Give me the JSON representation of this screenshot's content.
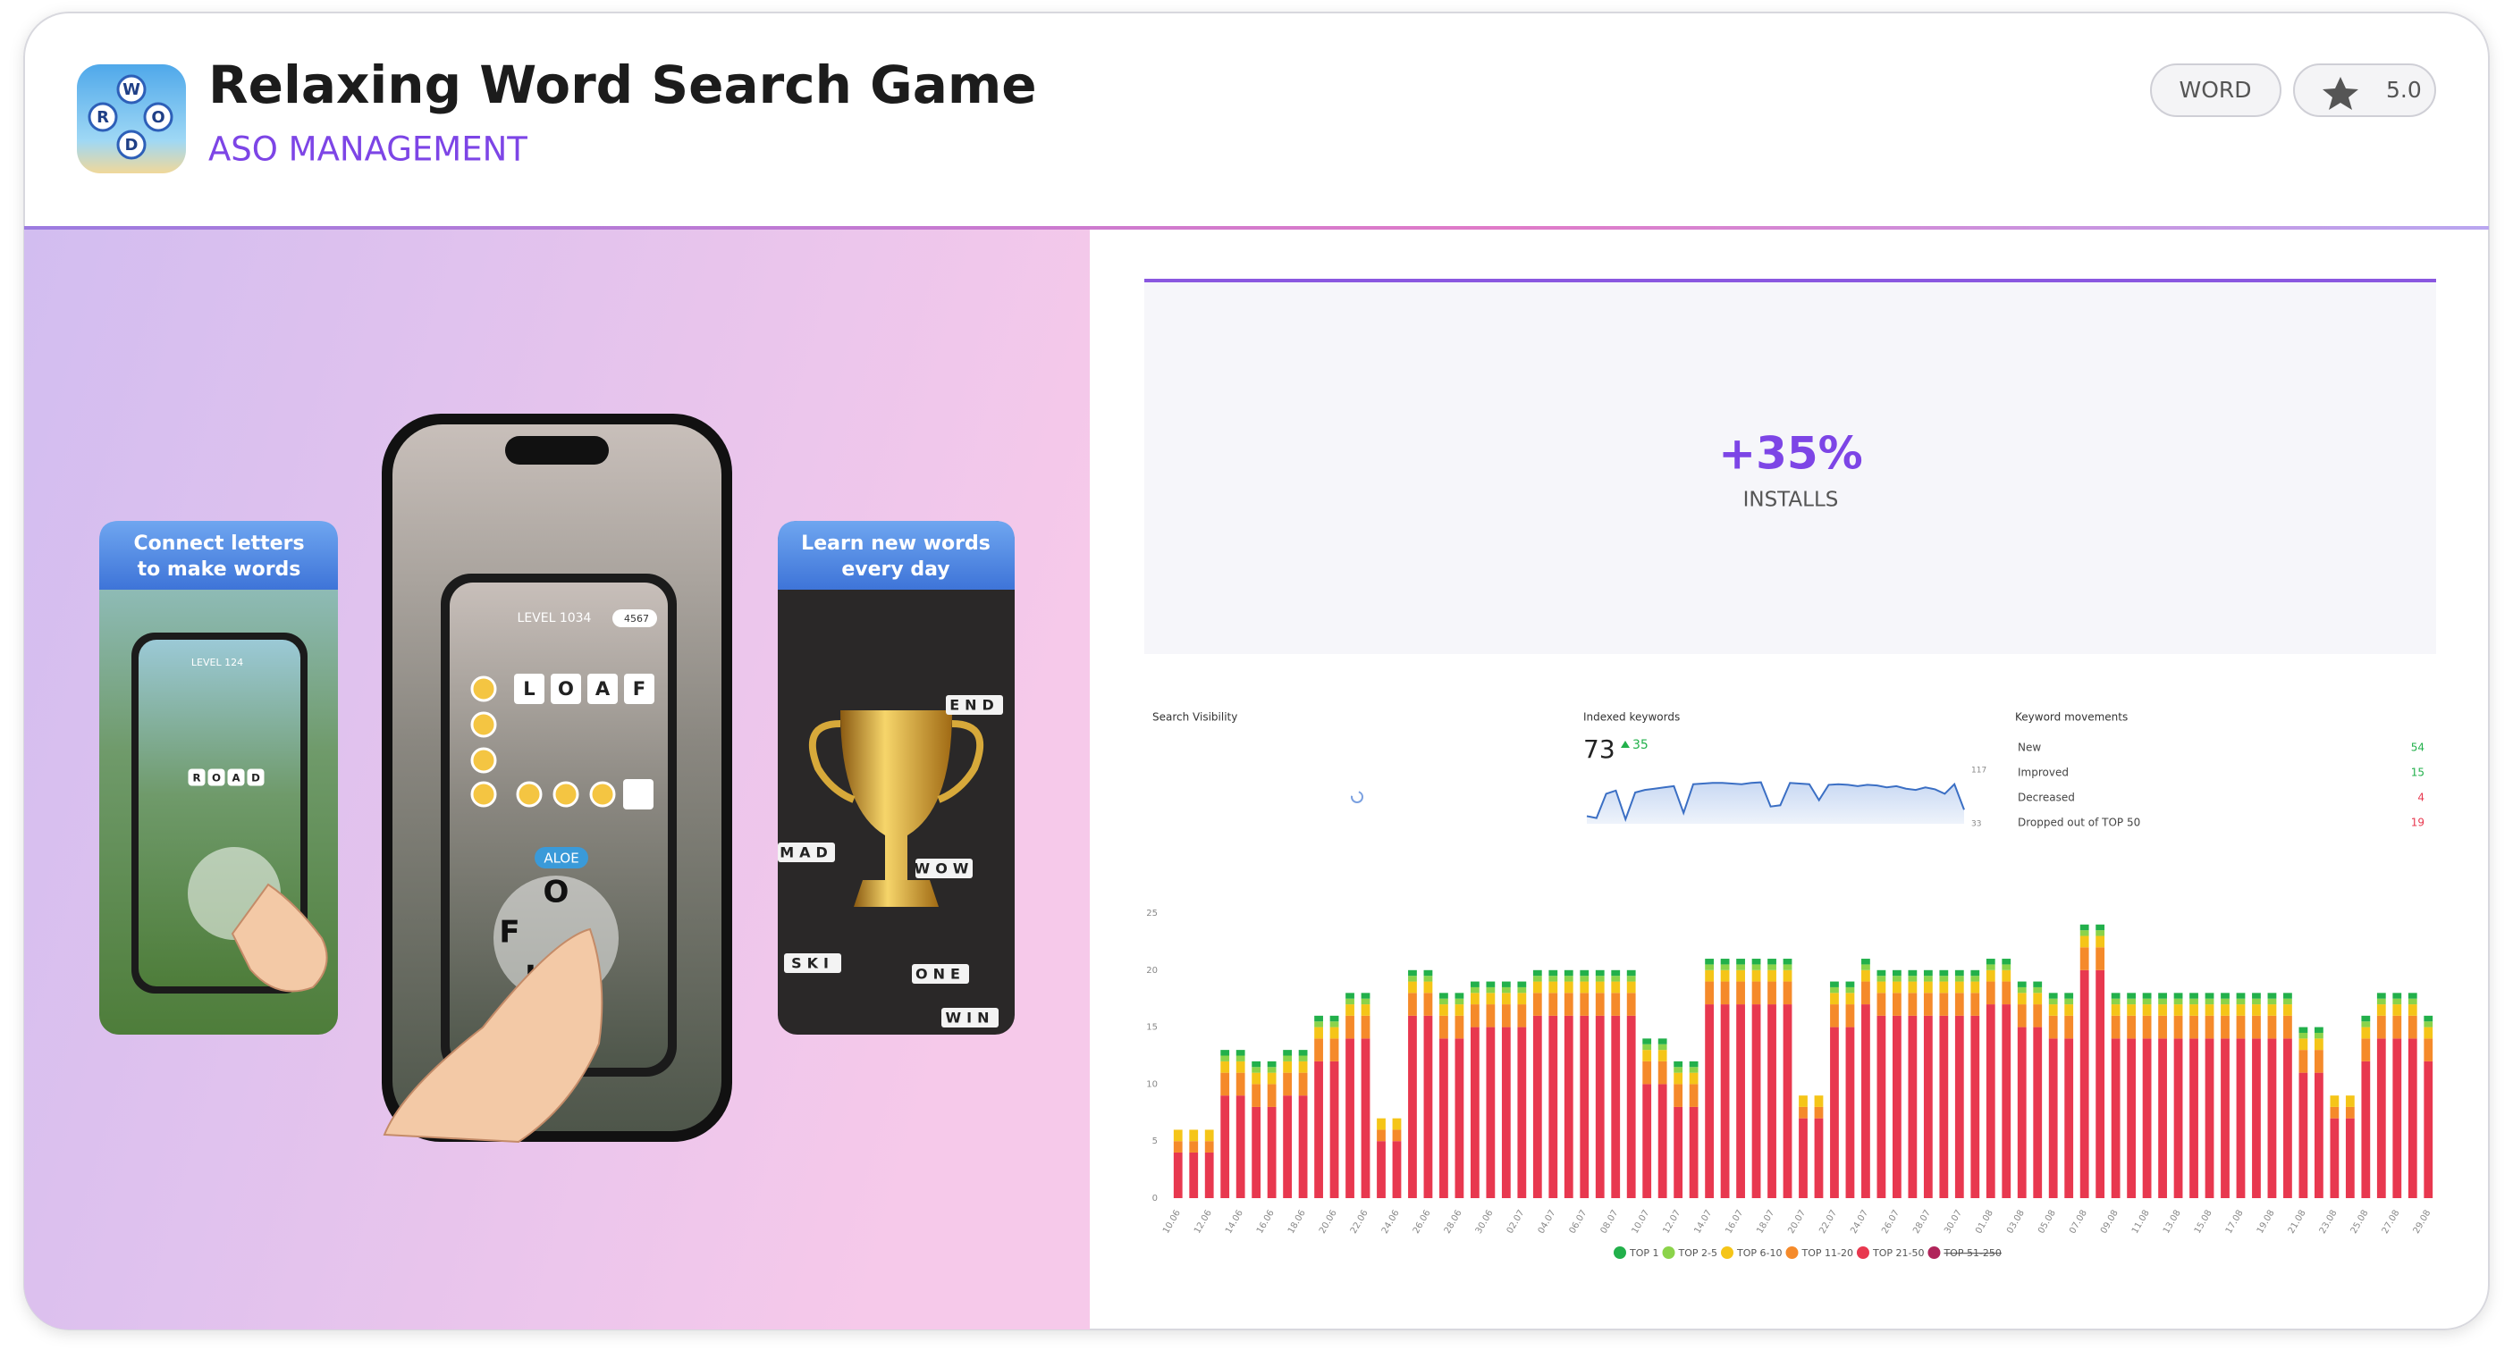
{
  "header": {
    "title": "Relaxing Word Search Game",
    "subtitle": "ASO MANAGEMENT",
    "icon_letters": [
      "W",
      "O",
      "R",
      "D"
    ],
    "tag": "WORD",
    "rating": "5.0"
  },
  "screens": [
    {
      "caption": [
        "Connect letters",
        "to make words"
      ],
      "level": "LEVEL 124",
      "tiles": [
        "R",
        "O",
        "A",
        "D"
      ]
    },
    {
      "level": "LEVEL 1034",
      "coins": "4567",
      "tiles": [
        "L",
        "O",
        "A",
        "F"
      ],
      "word": "ALOE",
      "wheel": [
        "O",
        "F",
        "L"
      ]
    },
    {
      "caption": [
        "Learn new words",
        "every day"
      ],
      "words": [
        "END",
        "MAD",
        "WOW",
        "SKI",
        "ONE",
        "WIN"
      ]
    }
  ],
  "result": {
    "value": "+35%",
    "label": "INSTALLS"
  },
  "metrics": {
    "search_visibility": "Search Visibility",
    "indexed": {
      "label": "Indexed keywords",
      "value": 73,
      "change": 35
    },
    "movements": {
      "label": "Keyword movements",
      "rows": [
        {
          "name": "New",
          "value": 54,
          "color": "#22b04b"
        },
        {
          "name": "Improved",
          "value": 15,
          "color": "#22b04b"
        },
        {
          "name": "Decreased",
          "value": 4,
          "color": "#e8384f"
        },
        {
          "name": "Dropped out of TOP 50",
          "value": 19,
          "color": "#e8384f"
        }
      ]
    }
  },
  "chart_data": [
    {
      "type": "stacked_bar",
      "ylim": [
        0,
        25
      ],
      "yticks": [
        0,
        5,
        10,
        15,
        20,
        25
      ],
      "categories": [
        "10.06",
        null,
        "12.06",
        null,
        "14.06",
        null,
        "16.06",
        null,
        "18.06",
        null,
        "20.06",
        null,
        "22.06",
        null,
        "24.06",
        null,
        "26.06",
        null,
        "28.06",
        null,
        "30.06",
        null,
        "02.07",
        null,
        "04.07",
        null,
        "06.07",
        null,
        "08.07",
        null,
        "10.07",
        null,
        "12.07",
        null,
        "14.07",
        null,
        "16.07",
        null,
        "18.07",
        null,
        "20.07",
        null,
        "22.07",
        null,
        "24.07",
        null,
        "26.07",
        null,
        "28.07",
        null,
        "30.07",
        null,
        "01.08",
        null,
        "03.08",
        null,
        "05.08",
        null,
        "07.08",
        null,
        "09.08",
        null,
        "11.08",
        null,
        "13.08",
        null,
        "15.08",
        null,
        "17.08",
        null,
        "19.08",
        null,
        "21.08",
        null,
        "23.08",
        null,
        "25.08",
        null,
        "27.08",
        null,
        "29.08"
      ],
      "series": [
        {
          "name": "TOP 1",
          "color": "#22b04b",
          "values": [
            0,
            0,
            0,
            0.5,
            0.5,
            0.5,
            0.5,
            0.5,
            0.5,
            0.5,
            0.5,
            0.5,
            0.5,
            0,
            0,
            0.5,
            0.5,
            0.5,
            0.5,
            0.5,
            0.5,
            0.5,
            0.5,
            0.5,
            0.5,
            0.5,
            0.5,
            0.5,
            0.5,
            0.5,
            0.5,
            0.5,
            0.5,
            0.5,
            0.5,
            0.5,
            0.5,
            0.5,
            0.5,
            0.5,
            0,
            0,
            0.5,
            0.5,
            0.5,
            0.5,
            0.5,
            0.5,
            0.5,
            0.5,
            0.5,
            0.5,
            0.5,
            0.5,
            0.5,
            0.5,
            0.5,
            0.5,
            0.5,
            0.5,
            0.5,
            0.5,
            0.5,
            0.5,
            0.5,
            0.5,
            0.5,
            0.5,
            0.5,
            0.5,
            0.5,
            0.5,
            0.5,
            0.5,
            0,
            0,
            0.5,
            0.5,
            0.5,
            0.5,
            0.5
          ]
        },
        {
          "name": "TOP 2-5",
          "color": "#8bd34a",
          "values": [
            0,
            0,
            0,
            0.5,
            0.5,
            0.5,
            0.5,
            0.5,
            0.5,
            0.5,
            0.5,
            0.5,
            0.5,
            0,
            0,
            0.5,
            0.5,
            0.5,
            0.5,
            0.5,
            0.5,
            0.5,
            0.5,
            0.5,
            0.5,
            0.5,
            0.5,
            0.5,
            0.5,
            0.5,
            0.5,
            0.5,
            0.5,
            0.5,
            0.5,
            0.5,
            0.5,
            0.5,
            0.5,
            0.5,
            0,
            0,
            0.5,
            0.5,
            0.5,
            0.5,
            0.5,
            0.5,
            0.5,
            0.5,
            0.5,
            0.5,
            0.5,
            0.5,
            0.5,
            0.5,
            0.5,
            0.5,
            0.5,
            0.5,
            0.5,
            0.5,
            0.5,
            0.5,
            0.5,
            0.5,
            0.5,
            0.5,
            0.5,
            0.5,
            0.5,
            0.5,
            0.5,
            0.5,
            0,
            0,
            0.5,
            0.5,
            0.5,
            0.5,
            0.5
          ]
        },
        {
          "name": "TOP 6-10",
          "color": "#f5c518",
          "values": [
            1,
            1,
            1,
            1,
            1,
            1,
            1,
            1,
            1,
            1,
            1,
            1,
            1,
            1,
            1,
            1,
            1,
            1,
            1,
            1,
            1,
            1,
            1,
            1,
            1,
            1,
            1,
            1,
            1,
            1,
            1,
            1,
            1,
            1,
            1,
            1,
            1,
            1,
            1,
            1,
            1,
            1,
            1,
            1,
            1,
            1,
            1,
            1,
            1,
            1,
            1,
            1,
            1,
            1,
            1,
            1,
            1,
            1,
            1,
            1,
            1,
            1,
            1,
            1,
            1,
            1,
            1,
            1,
            1,
            1,
            1,
            1,
            1,
            1,
            1,
            1,
            1,
            1,
            1,
            1,
            1
          ]
        },
        {
          "name": "TOP 11-20",
          "color": "#f58a2a",
          "values": [
            1,
            1,
            1,
            2,
            2,
            2,
            2,
            2,
            2,
            2,
            2,
            2,
            2,
            1,
            1,
            2,
            2,
            2,
            2,
            2,
            2,
            2,
            2,
            2,
            2,
            2,
            2,
            2,
            2,
            2,
            2,
            2,
            2,
            2,
            2,
            2,
            2,
            2,
            2,
            2,
            1,
            1,
            2,
            2,
            2,
            2,
            2,
            2,
            2,
            2,
            2,
            2,
            2,
            2,
            2,
            2,
            2,
            2,
            2,
            2,
            2,
            2,
            2,
            2,
            2,
            2,
            2,
            2,
            2,
            2,
            2,
            2,
            2,
            2,
            1,
            1,
            2,
            2,
            2,
            2,
            2
          ]
        },
        {
          "name": "TOP 21-50",
          "color": "#e8384f",
          "values": [
            4,
            4,
            4,
            9,
            9,
            8,
            8,
            9,
            9,
            12,
            12,
            14,
            14,
            5,
            5,
            16,
            16,
            14,
            14,
            15,
            15,
            15,
            15,
            16,
            16,
            16,
            16,
            16,
            16,
            16,
            10,
            10,
            8,
            8,
            17,
            17,
            17,
            17,
            17,
            17,
            7,
            7,
            15,
            15,
            17,
            16,
            16,
            16,
            16,
            16,
            16,
            16,
            17,
            17,
            15,
            15,
            14,
            14,
            20,
            20,
            14,
            14,
            14,
            14,
            14,
            14,
            14,
            14,
            14,
            14,
            14,
            14,
            11,
            11,
            7,
            7,
            12,
            14,
            14,
            14,
            12
          ]
        }
      ],
      "legend_extra": [
        {
          "name": "TOP 51-250",
          "color": "#b0245a",
          "struck": true
        }
      ]
    },
    {
      "type": "line",
      "color": "#3b6fc4",
      "ylim": [
        33,
        117
      ],
      "yticks": [
        33,
        117
      ],
      "values": [
        45,
        42,
        80,
        85,
        40,
        82,
        86,
        88,
        90,
        92,
        50,
        95,
        96,
        97,
        97,
        96,
        95,
        97,
        98,
        60,
        62,
        97,
        96,
        95,
        70,
        94,
        95,
        94,
        92,
        94,
        93,
        90,
        92,
        88,
        86,
        90,
        87,
        80,
        95,
        55
      ]
    }
  ]
}
